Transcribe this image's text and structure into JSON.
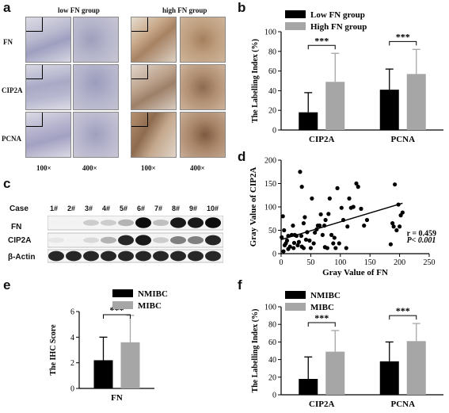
{
  "panels": {
    "a": {
      "letter": "a",
      "groups": [
        "low FN group",
        "high FN group"
      ],
      "rows": [
        "FN",
        "CIP2A",
        "PCNA"
      ],
      "mags": [
        "100×",
        "400×",
        "100×",
        "400×"
      ]
    },
    "c": {
      "letter": "c",
      "case_label": "Case",
      "lanes": [
        "1#",
        "2#",
        "3#",
        "4#",
        "5#",
        "6#",
        "7#",
        "8#",
        "9#",
        "10#"
      ],
      "rows": [
        "FN",
        "CIP2A",
        "β-Actin"
      ],
      "band_intensity": {
        "FN": [
          0.05,
          0.05,
          0.2,
          0.2,
          0.3,
          0.95,
          0.25,
          0.9,
          0.9,
          0.95
        ],
        "CIP2A": [
          0.1,
          0.05,
          0.15,
          0.3,
          0.85,
          0.9,
          0.2,
          0.5,
          0.5,
          0.85
        ],
        "β-Actin": [
          0.85,
          0.85,
          0.85,
          0.85,
          0.85,
          0.85,
          0.85,
          0.85,
          0.85,
          0.85
        ]
      }
    },
    "b": "b",
    "d": "d",
    "e": "e",
    "f": "f"
  },
  "chart_data": [
    {
      "id": "b",
      "type": "bar",
      "categories": [
        "CIP2A",
        "PCNA"
      ],
      "series": [
        {
          "name": "Low   FN group",
          "color": "#000000",
          "values": [
            18,
            41
          ],
          "errors": [
            20,
            21
          ]
        },
        {
          "name": "High   FN group",
          "color": "#a6a6a6",
          "values": [
            49,
            57
          ],
          "errors": [
            29,
            25
          ]
        }
      ],
      "ylabel": "The Labelling Index (%)",
      "ylim": [
        0,
        100
      ],
      "yticks": [
        "0",
        "20",
        "40",
        "60",
        "80",
        "100"
      ],
      "significance": [
        "***",
        "***"
      ],
      "legend": "top"
    },
    {
      "id": "d",
      "type": "scatter",
      "xlabel": "Gray Value of FN",
      "ylabel": "Gray Value of CIP2A",
      "xlim": [
        0,
        250
      ],
      "ylim": [
        0,
        200
      ],
      "xticks": [
        "0",
        "50",
        "100",
        "150",
        "200",
        "250"
      ],
      "yticks": [
        "0",
        "50",
        "100",
        "150",
        "200"
      ],
      "annotation_r": "r = 0.459",
      "annotation_p": "P< 0.001",
      "fit_line": [
        [
          0,
          30
        ],
        [
          205,
          108
        ]
      ],
      "points": [
        [
          1,
          35
        ],
        [
          3,
          80
        ],
        [
          4,
          5
        ],
        [
          5,
          50
        ],
        [
          6,
          18
        ],
        [
          8,
          22
        ],
        [
          10,
          28
        ],
        [
          12,
          38
        ],
        [
          12,
          10
        ],
        [
          15,
          15
        ],
        [
          18,
          40
        ],
        [
          20,
          60
        ],
        [
          21,
          12
        ],
        [
          22,
          23
        ],
        [
          23,
          40
        ],
        [
          26,
          38
        ],
        [
          28,
          18
        ],
        [
          30,
          25
        ],
        [
          32,
          175
        ],
        [
          34,
          38
        ],
        [
          35,
          143
        ],
        [
          35,
          15
        ],
        [
          38,
          12
        ],
        [
          38,
          65
        ],
        [
          40,
          78
        ],
        [
          42,
          30
        ],
        [
          44,
          46
        ],
        [
          48,
          28
        ],
        [
          50,
          12
        ],
        [
          52,
          118
        ],
        [
          55,
          22
        ],
        [
          57,
          45
        ],
        [
          60,
          52
        ],
        [
          62,
          60
        ],
        [
          65,
          60
        ],
        [
          67,
          84
        ],
        [
          70,
          40
        ],
        [
          73,
          60
        ],
        [
          74,
          14
        ],
        [
          75,
          72
        ],
        [
          78,
          12
        ],
        [
          80,
          85
        ],
        [
          82,
          118
        ],
        [
          85,
          40
        ],
        [
          88,
          22
        ],
        [
          90,
          34
        ],
        [
          92,
          12
        ],
        [
          95,
          140
        ],
        [
          98,
          22
        ],
        [
          102,
          98
        ],
        [
          105,
          72
        ],
        [
          110,
          12
        ],
        [
          112,
          58
        ],
        [
          115,
          118
        ],
        [
          118,
          98
        ],
        [
          122,
          100
        ],
        [
          127,
          150
        ],
        [
          130,
          143
        ],
        [
          135,
          96
        ],
        [
          140,
          60
        ],
        [
          145,
          72
        ],
        [
          185,
          20
        ],
        [
          188,
          65
        ],
        [
          190,
          58
        ],
        [
          195,
          50
        ],
        [
          198,
          105
        ],
        [
          200,
          58
        ],
        [
          202,
          82
        ],
        [
          205,
          88
        ],
        [
          192,
          148
        ]
      ]
    },
    {
      "id": "e",
      "type": "bar",
      "categories": [
        "FN"
      ],
      "series": [
        {
          "name": "NMIBC",
          "color": "#000000",
          "values": [
            2.2
          ],
          "errors": [
            1.8
          ]
        },
        {
          "name": "MIBC",
          "color": "#a6a6a6",
          "values": [
            3.6
          ],
          "errors": [
            2.1
          ]
        }
      ],
      "ylabel": "The IHC Score",
      "ylim": [
        0,
        6
      ],
      "yticks": [
        "0",
        "2",
        "4",
        "6"
      ],
      "significance": [
        "***"
      ],
      "legend": "top-right"
    },
    {
      "id": "f",
      "type": "bar",
      "categories": [
        "CIP2A",
        "PCNA"
      ],
      "series": [
        {
          "name": "NMIBC",
          "color": "#000000",
          "values": [
            18,
            38
          ],
          "errors": [
            25,
            22
          ]
        },
        {
          "name": "MIBC",
          "color": "#a6a6a6",
          "values": [
            49,
            61
          ],
          "errors": [
            24,
            20
          ]
        }
      ],
      "ylabel": "The Labelling Index (%)",
      "ylim": [
        0,
        100
      ],
      "yticks": [
        "0",
        "20",
        "40",
        "60",
        "80",
        "100"
      ],
      "significance": [
        "***",
        "***"
      ],
      "legend": "top-left"
    }
  ]
}
